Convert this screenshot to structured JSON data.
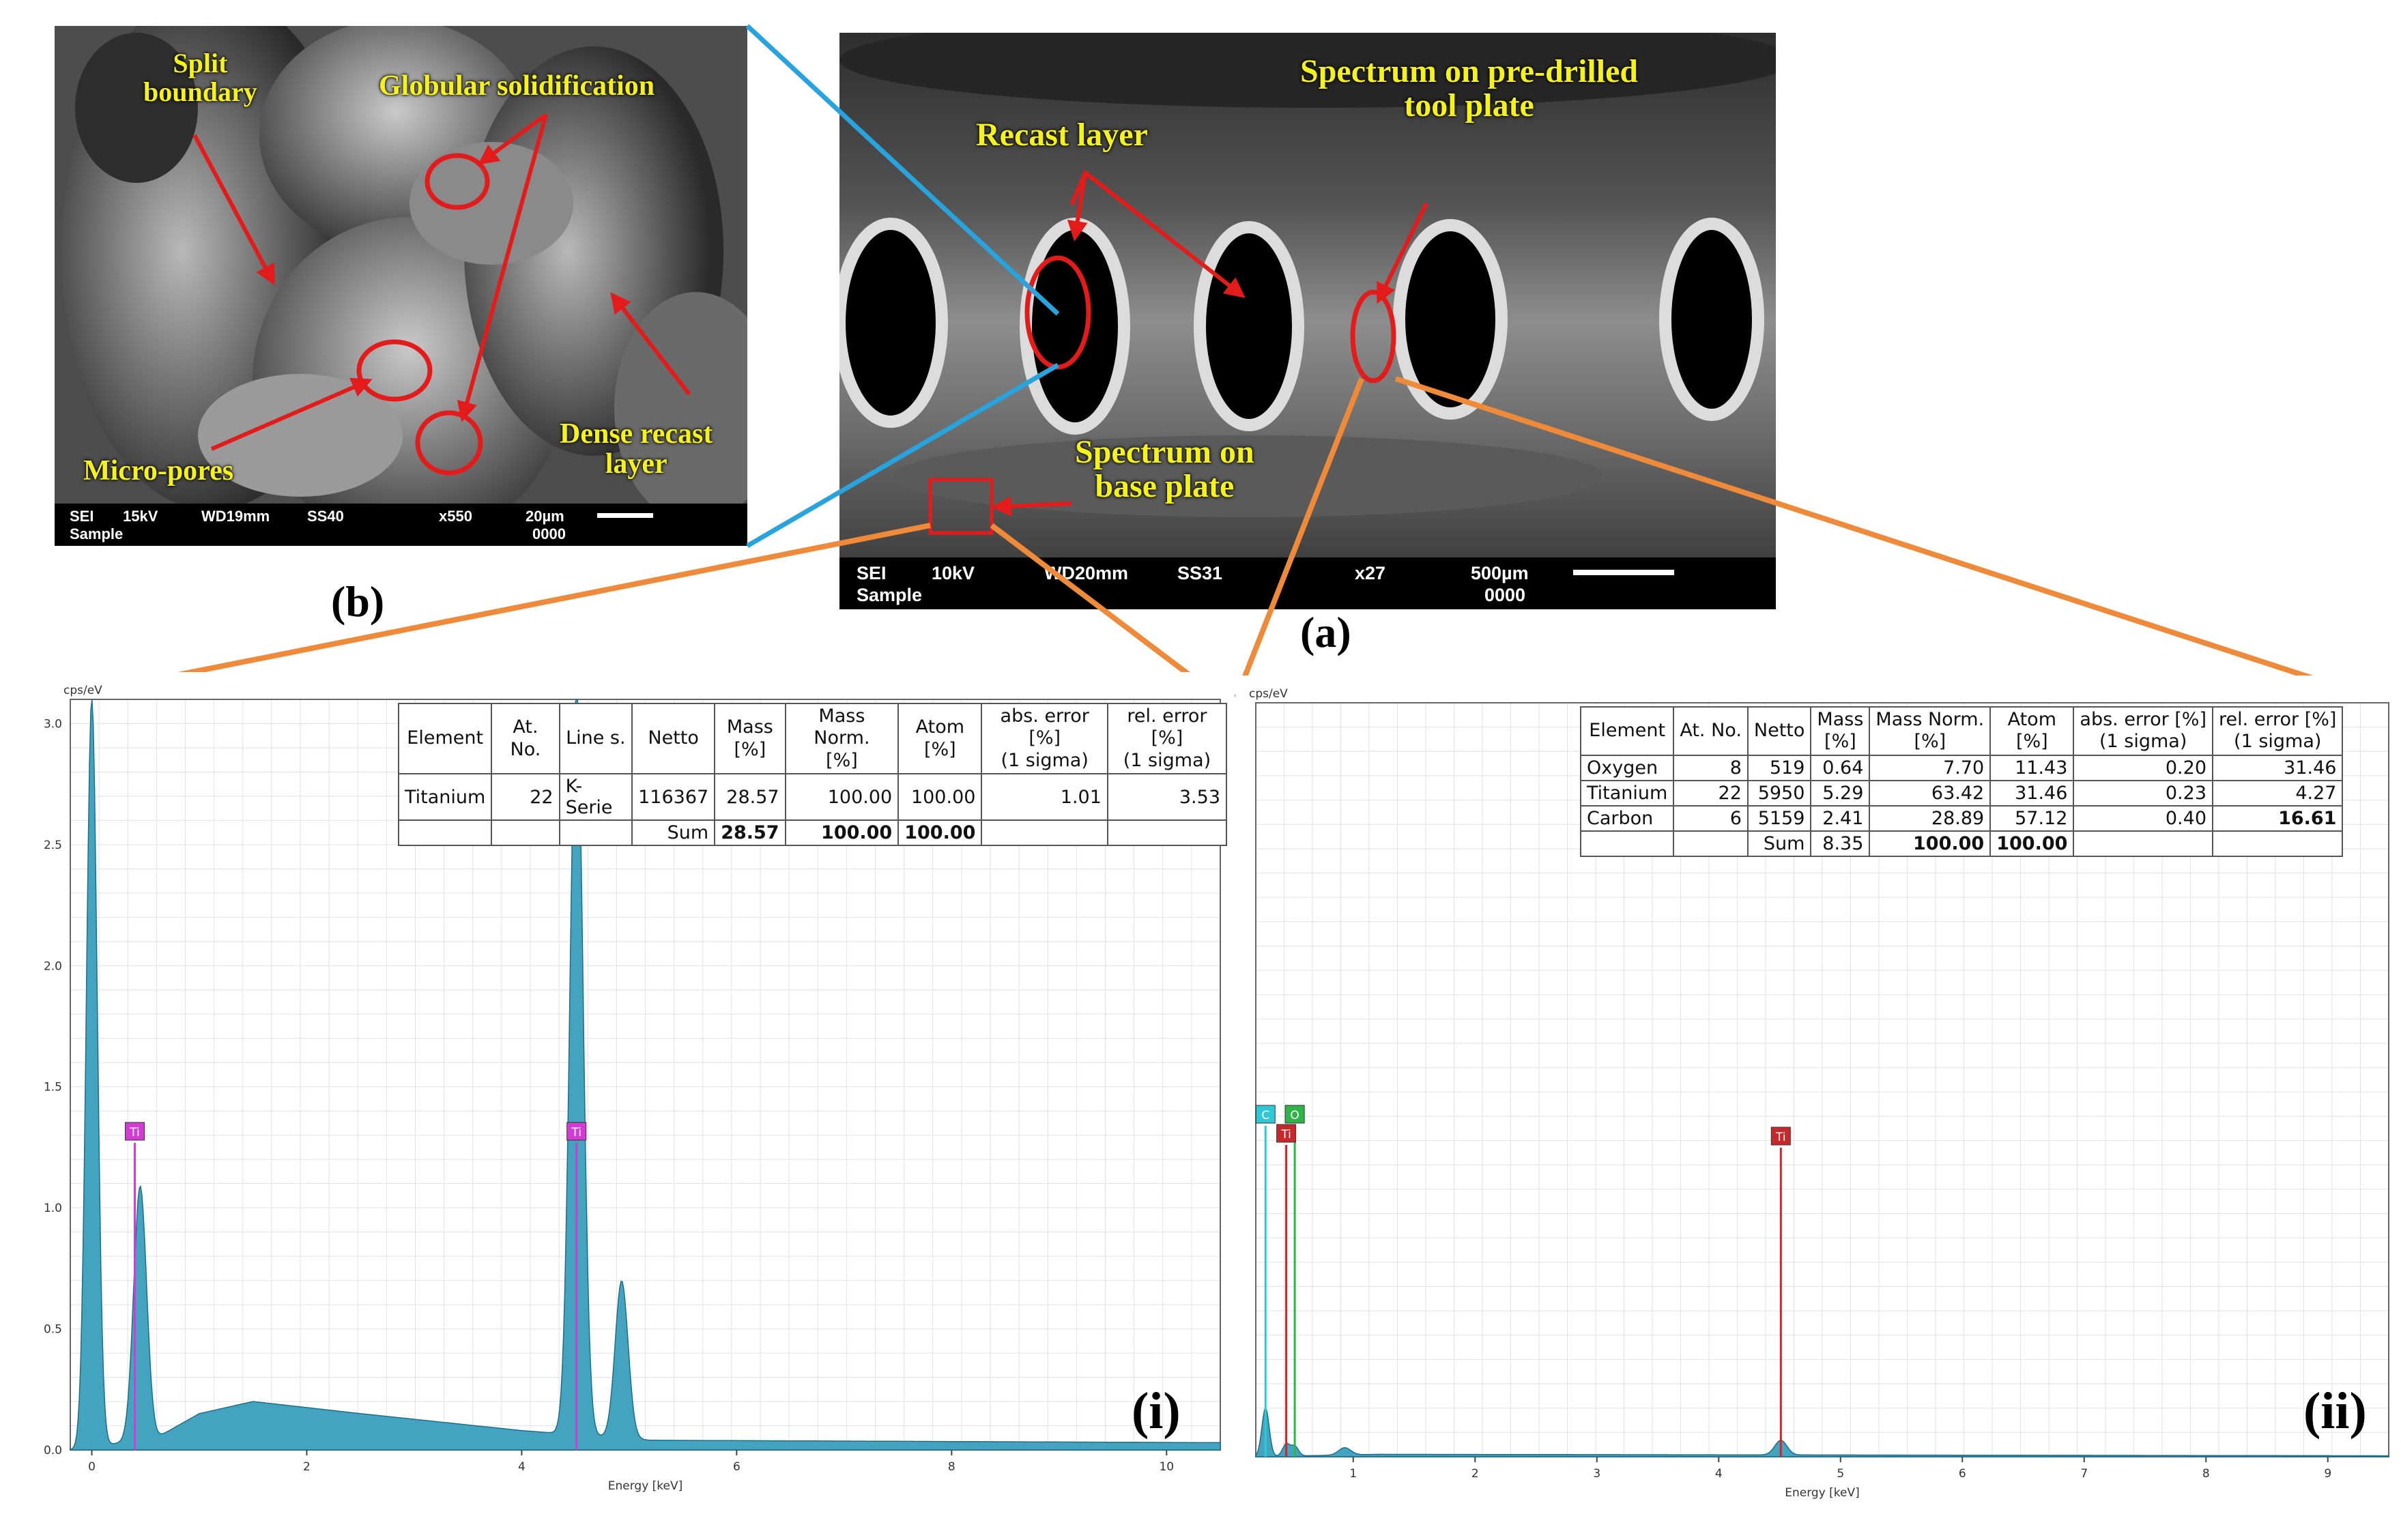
{
  "colors": {
    "annotation": "#e31b1b",
    "label_text": "#f5f11a",
    "zoom_b": "#29a3dd",
    "zoom_i": "#ef8a3a",
    "spectrum_fill": "#3a9fbd"
  },
  "panel_labels": {
    "a": "(a)",
    "b": "(b)",
    "i": "(i)",
    "ii": "(ii)"
  },
  "sem_b": {
    "labels": {
      "split_boundary": "Split\nboundary",
      "globular": "Globular solidification",
      "micro_pores": "Micro-pores",
      "dense_recast": "Dense recast\nlayer"
    },
    "bar": {
      "mode": "SEI",
      "kv": "15kV",
      "wd": "WD19mm",
      "ss": "SS40",
      "mag": "x550",
      "scale": "20µm",
      "sample": "Sample",
      "num": "0000"
    }
  },
  "sem_a": {
    "labels": {
      "recast": "Recast layer",
      "spectrum_tool": "Spectrum on pre-drilled\ntool plate",
      "spectrum_base": "Spectrum on\nbase plate"
    },
    "bar": {
      "mode": "SEI",
      "kv": "10kV",
      "wd": "WD20mm",
      "ss": "SS31",
      "mag": "x27",
      "scale": "500µm",
      "sample": "Sample",
      "num": "0000"
    }
  },
  "table_i": {
    "headers": [
      "Element",
      "At. No.",
      "Line s.",
      "Netto",
      "Mass\n[%]",
      "Mass Norm.\n[%]",
      "Atom\n[%]",
      "abs. error [%]\n(1 sigma)",
      "rel. error [%]\n(1 sigma)"
    ],
    "rows": [
      [
        "Titanium",
        "22",
        "K-Serie",
        "116367",
        "28.57",
        "100.00",
        "100.00",
        "1.01",
        "3.53"
      ]
    ],
    "sum": [
      "",
      "",
      "",
      "Sum",
      "28.57",
      "100.00",
      "100.00",
      "",
      ""
    ]
  },
  "table_ii": {
    "headers": [
      "Element",
      "At. No.",
      "Netto",
      "Mass\n[%]",
      "Mass Norm.\n[%]",
      "Atom\n[%]",
      "abs. error [%]\n(1 sigma)",
      "rel. error [%]\n(1 sigma)"
    ],
    "rows": [
      [
        "Oxygen",
        "8",
        "519",
        "0.64",
        "7.70",
        "11.43",
        "0.20",
        "31.46"
      ],
      [
        "Titanium",
        "22",
        "5950",
        "5.29",
        "63.42",
        "31.46",
        "0.23",
        "4.27"
      ],
      [
        "Carbon",
        "6",
        "5159",
        "2.41",
        "28.89",
        "57.12",
        "0.40",
        "16.61"
      ]
    ],
    "sum": [
      "",
      "",
      "Sum",
      "8.35",
      "100.00",
      "100.00",
      "",
      ""
    ]
  },
  "chart_data": [
    {
      "type": "area",
      "ylabel": "cps/eV",
      "xlabel": "Energy [keV]",
      "xlim": [
        -0.2,
        10.5
      ],
      "ylim": [
        0,
        3.1
      ],
      "x_ticks": [
        "0",
        "2",
        "4",
        "6",
        "8",
        "10"
      ],
      "y_ticks": [
        "0.0",
        "0.5",
        "1.0",
        "1.5",
        "2.0",
        "2.5",
        "3.0"
      ],
      "peaks": [
        {
          "x": 0.0,
          "y": 3.1,
          "width": 0.05
        },
        {
          "x": 0.45,
          "y": 1.05,
          "width": 0.06
        },
        {
          "x": 4.51,
          "y": 3.1,
          "width": 0.06
        },
        {
          "x": 4.93,
          "y": 0.65,
          "width": 0.06
        }
      ],
      "background": [
        [
          0.6,
          0.05
        ],
        [
          1.0,
          0.15
        ],
        [
          1.5,
          0.2
        ],
        [
          2.5,
          0.15
        ],
        [
          4.0,
          0.08
        ],
        [
          5.2,
          0.04
        ],
        [
          10.5,
          0.03
        ]
      ],
      "markers": [
        {
          "label": "Ti",
          "x": 0.4,
          "color": "#d23cd2"
        },
        {
          "label": "Ti",
          "x": 4.51,
          "color": "#d23cd2"
        }
      ]
    },
    {
      "type": "area",
      "ylabel": "cps/eV",
      "xlabel": "Energy [keV]",
      "xlim": [
        0.2,
        9.5
      ],
      "ylim": [
        0,
        3.1
      ],
      "x_ticks": [
        "1",
        "2",
        "3",
        "4",
        "5",
        "6",
        "7",
        "8",
        "9"
      ],
      "peaks": [
        {
          "x": 0.28,
          "y": 0.2,
          "width": 0.03
        },
        {
          "x": 0.52,
          "y": 0.04,
          "width": 0.03
        },
        {
          "x": 0.45,
          "y": 0.05,
          "width": 0.03
        },
        {
          "x": 4.51,
          "y": 0.06,
          "width": 0.05
        },
        {
          "x": 0.93,
          "y": 0.03,
          "width": 0.05
        }
      ],
      "background": [
        [
          1.2,
          0.01
        ],
        [
          9.5,
          0.004
        ]
      ],
      "markers": [
        {
          "label": "C",
          "x": 0.28,
          "color": "#2ec8d4"
        },
        {
          "label": "O",
          "x": 0.52,
          "color": "#2fb44a"
        },
        {
          "label": "Ti",
          "x": 0.45,
          "color": "#c8282c"
        },
        {
          "label": "Ti",
          "x": 4.51,
          "color": "#c8282c"
        }
      ]
    }
  ]
}
